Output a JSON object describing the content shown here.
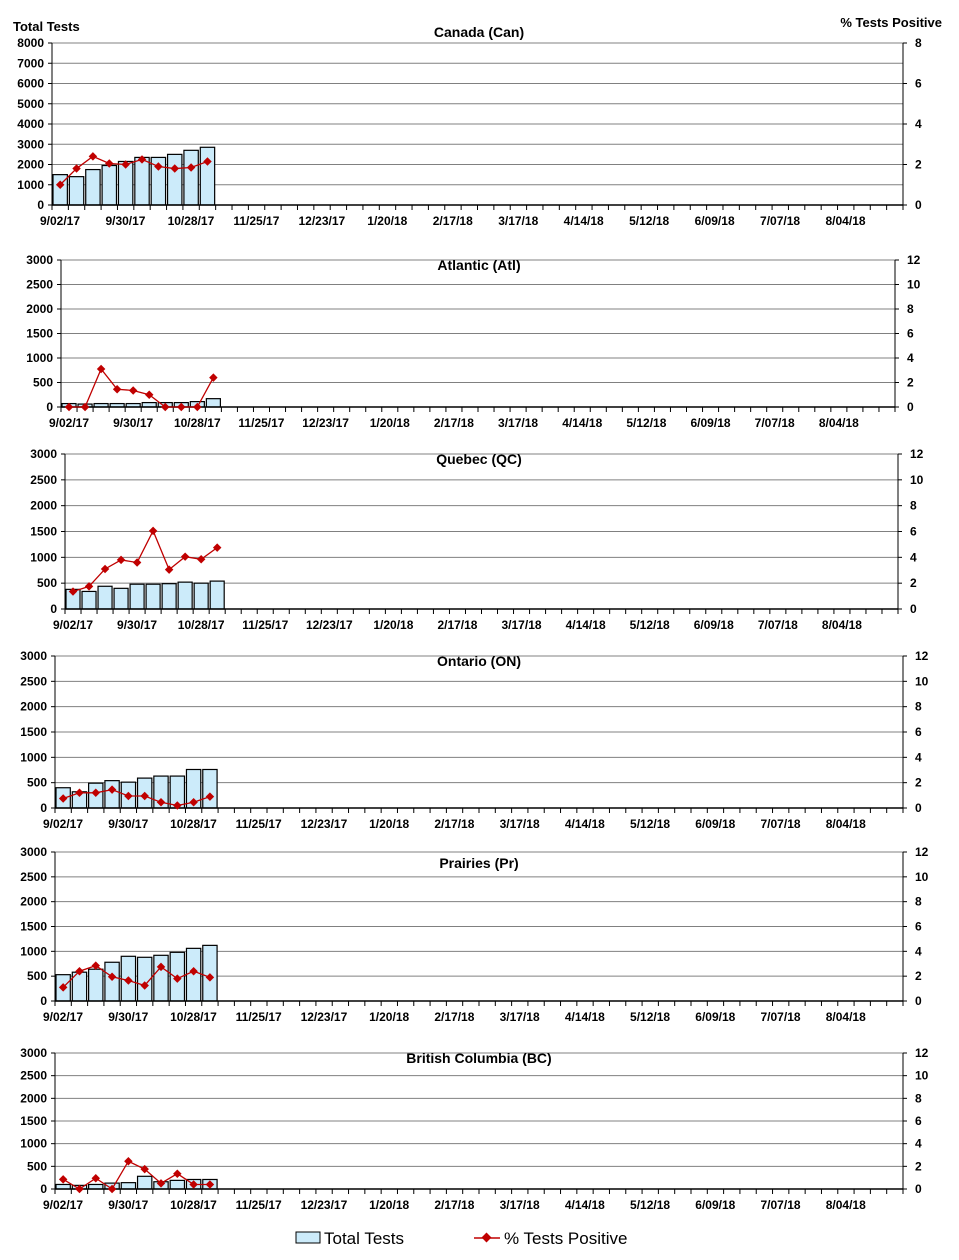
{
  "colors": {
    "bar_fill": "#CCEBFA",
    "bar_stroke": "#000000",
    "line": "#C00000",
    "grid": "#808080"
  },
  "left_axis_title": "Total Tests",
  "right_axis_title": "% Tests Positive",
  "legend": {
    "bars": "Total Tests",
    "line": "% Tests Positive"
  },
  "chart_data": [
    {
      "type": "bar+line",
      "title": "Canada (Can)",
      "ylim": [
        0,
        8000
      ],
      "yticks": [
        "0",
        "1000",
        "2000",
        "3000",
        "4000",
        "5000",
        "6000",
        "7000",
        "8000"
      ],
      "y2lim": [
        0,
        8
      ],
      "y2ticks": [
        "0",
        "2",
        "4",
        "6",
        "8"
      ],
      "xticklabels": [
        "9/02/17",
        "9/30/17",
        "10/28/17",
        "11/25/17",
        "12/23/17",
        "1/20/18",
        "2/17/18",
        "3/17/18",
        "4/14/18",
        "5/12/18",
        "6/09/18",
        "7/07/18",
        "8/04/18"
      ],
      "series": [
        {
          "name": "Total Tests",
          "type": "bar",
          "values": [
            1500,
            1400,
            1750,
            1950,
            2150,
            2350,
            2350,
            2500,
            2700,
            2850
          ]
        },
        {
          "name": "% Tests Positive",
          "type": "line",
          "values": [
            1.0,
            1.8,
            2.4,
            2.05,
            2.0,
            2.25,
            1.9,
            1.8,
            1.85,
            2.15
          ]
        }
      ]
    },
    {
      "type": "bar+line",
      "title": "Atlantic (Atl)",
      "ylim": [
        0,
        3000
      ],
      "yticks": [
        "0",
        "500",
        "1000",
        "1500",
        "2000",
        "2500",
        "3000"
      ],
      "y2lim": [
        0,
        12
      ],
      "y2ticks": [
        "0",
        "2",
        "4",
        "6",
        "8",
        "10",
        "12"
      ],
      "xticklabels": [
        "9/02/17",
        "9/30/17",
        "10/28/17",
        "11/25/17",
        "12/23/17",
        "1/20/18",
        "2/17/18",
        "3/17/18",
        "4/14/18",
        "5/12/18",
        "6/09/18",
        "7/07/18",
        "8/04/18"
      ],
      "series": [
        {
          "name": "Total Tests",
          "type": "bar",
          "values": [
            70,
            60,
            70,
            70,
            70,
            90,
            90,
            90,
            110,
            170
          ]
        },
        {
          "name": "% Tests Positive",
          "type": "line",
          "values": [
            0,
            0,
            3.1,
            1.45,
            1.35,
            1.0,
            0,
            0,
            0,
            2.4
          ]
        }
      ]
    },
    {
      "type": "bar+line",
      "title": "Quebec (QC)",
      "ylim": [
        0,
        3000
      ],
      "yticks": [
        "0",
        "500",
        "1000",
        "1500",
        "2000",
        "2500",
        "3000"
      ],
      "y2lim": [
        0,
        12
      ],
      "y2ticks": [
        "0",
        "2",
        "4",
        "6",
        "8",
        "10",
        "12"
      ],
      "xticklabels": [
        "9/02/17",
        "9/30/17",
        "10/28/17",
        "11/25/17",
        "12/23/17",
        "1/20/18",
        "2/17/18",
        "3/17/18",
        "4/14/18",
        "5/12/18",
        "6/09/18",
        "7/07/18",
        "8/04/18"
      ],
      "series": [
        {
          "name": "Total Tests",
          "type": "bar",
          "values": [
            380,
            340,
            440,
            400,
            480,
            480,
            490,
            520,
            500,
            540
          ]
        },
        {
          "name": "% Tests Positive",
          "type": "line",
          "values": [
            1.35,
            1.75,
            3.1,
            3.8,
            3.6,
            6.05,
            3.05,
            4.05,
            3.85,
            4.75
          ]
        }
      ]
    },
    {
      "type": "bar+line",
      "title": "Ontario (ON)",
      "ylim": [
        0,
        3000
      ],
      "yticks": [
        "0",
        "500",
        "1000",
        "1500",
        "2000",
        "2500",
        "3000"
      ],
      "y2lim": [
        0,
        12
      ],
      "y2ticks": [
        "0",
        "2",
        "4",
        "6",
        "8",
        "10",
        "12"
      ],
      "xticklabels": [
        "9/02/17",
        "9/30/17",
        "10/28/17",
        "11/25/17",
        "12/23/17",
        "1/20/18",
        "2/17/18",
        "3/17/18",
        "4/14/18",
        "5/12/18",
        "6/09/18",
        "7/07/18",
        "8/04/18"
      ],
      "series": [
        {
          "name": "Total Tests",
          "type": "bar",
          "values": [
            400,
            320,
            490,
            540,
            510,
            590,
            630,
            630,
            760,
            760
          ]
        },
        {
          "name": "% Tests Positive",
          "type": "line",
          "values": [
            0.75,
            1.2,
            1.2,
            1.45,
            0.95,
            0.95,
            0.45,
            0.2,
            0.45,
            0.9
          ]
        }
      ]
    },
    {
      "type": "bar+line",
      "title": "Prairies (Pr)",
      "ylim": [
        0,
        3000
      ],
      "yticks": [
        "0",
        "500",
        "1000",
        "1500",
        "2000",
        "2500",
        "3000"
      ],
      "y2lim": [
        0,
        12
      ],
      "y2ticks": [
        "0",
        "2",
        "4",
        "6",
        "8",
        "10",
        "12"
      ],
      "xticklabels": [
        "9/02/17",
        "9/30/17",
        "10/28/17",
        "11/25/17",
        "12/23/17",
        "1/20/18",
        "2/17/18",
        "3/17/18",
        "4/14/18",
        "5/12/18",
        "6/09/18",
        "7/07/18",
        "8/04/18"
      ],
      "series": [
        {
          "name": "Total Tests",
          "type": "bar",
          "values": [
            530,
            580,
            640,
            780,
            900,
            880,
            920,
            980,
            1060,
            1120
          ]
        },
        {
          "name": "% Tests Positive",
          "type": "line",
          "values": [
            1.1,
            2.4,
            2.85,
            1.95,
            1.65,
            1.25,
            2.75,
            1.8,
            2.4,
            1.9
          ]
        }
      ]
    },
    {
      "type": "bar+line",
      "title": "British Columbia (BC)",
      "ylim": [
        0,
        3000
      ],
      "yticks": [
        "0",
        "500",
        "1000",
        "1500",
        "2000",
        "2500",
        "3000"
      ],
      "y2lim": [
        0,
        12
      ],
      "y2ticks": [
        "0",
        "2",
        "4",
        "6",
        "8",
        "10",
        "12"
      ],
      "xticklabels": [
        "9/02/17",
        "9/30/17",
        "10/28/17",
        "11/25/17",
        "12/23/17",
        "1/20/18",
        "2/17/18",
        "3/17/18",
        "4/14/18",
        "5/12/18",
        "6/09/18",
        "7/07/18",
        "8/04/18"
      ],
      "series": [
        {
          "name": "Total Tests",
          "type": "bar",
          "values": [
            100,
            80,
            100,
            130,
            140,
            280,
            160,
            190,
            210,
            210
          ]
        },
        {
          "name": "% Tests Positive",
          "type": "line",
          "values": [
            0.85,
            0,
            0.95,
            0,
            2.45,
            1.75,
            0.5,
            1.35,
            0.4,
            0.4
          ]
        }
      ]
    }
  ]
}
